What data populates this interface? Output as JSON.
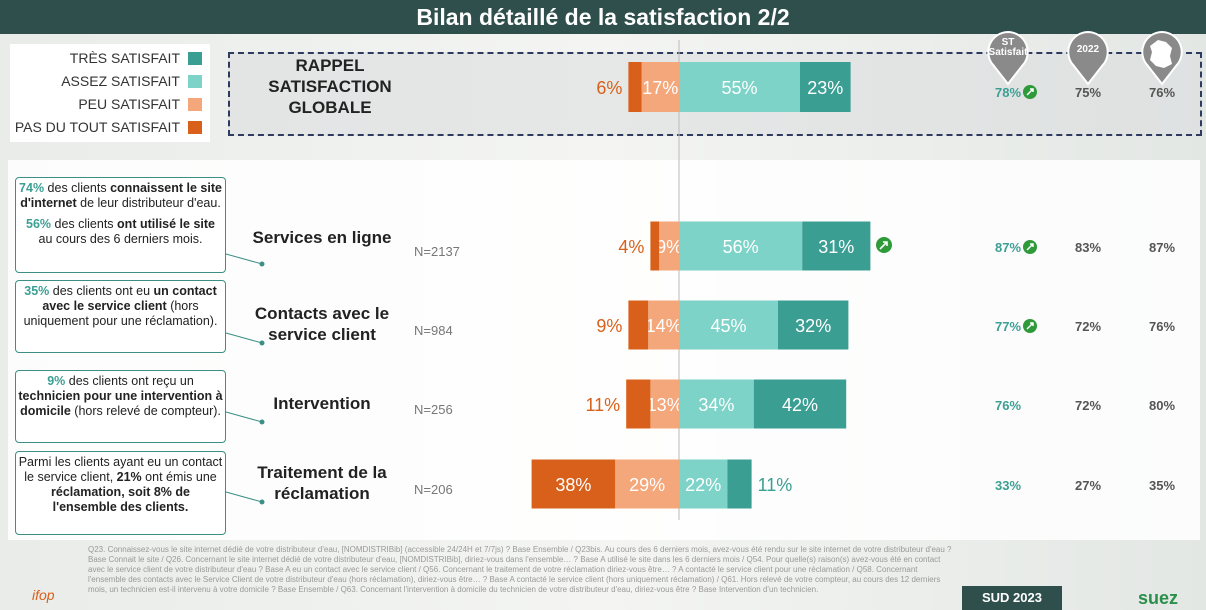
{
  "chart_data": {
    "type": "bar",
    "stacked": true,
    "diverging": true,
    "title": "Bilan détaillé de la satisfaction 2/2",
    "categories": [
      "RAPPEL SATISFACTION GLOBALE",
      "Services en ligne",
      "Contacts avec le service client",
      "Intervention",
      "Traitement de la réclamation"
    ],
    "n": [
      null,
      "N=2137",
      "N=984",
      "N=256",
      "N=206"
    ],
    "series": [
      {
        "name": "PAS DU TOUT SATISFAIT",
        "color": "#d9601a",
        "side": "negative",
        "values": [
          6,
          4,
          9,
          11,
          38
        ],
        "value_labels": [
          "6%",
          "4%",
          "9%",
          "11%",
          "38%"
        ]
      },
      {
        "name": "PEU SATISFAIT",
        "color": "#f4a77a",
        "side": "negative",
        "values": [
          17,
          9,
          14,
          13,
          29
        ],
        "value_labels": [
          "17%",
          "9%",
          "14%",
          "13%",
          "29%"
        ]
      },
      {
        "name": "ASSEZ SATISFAIT",
        "color": "#7dd3c8",
        "side": "positive",
        "values": [
          55,
          56,
          45,
          34,
          22
        ],
        "value_labels": [
          "55%",
          "56%",
          "45%",
          "34%",
          "22%"
        ]
      },
      {
        "name": "TRÈS SATISFAIT",
        "color": "#3a9e93",
        "side": "positive",
        "values": [
          23,
          31,
          32,
          42,
          11
        ],
        "value_labels": [
          "23%",
          "31%",
          "32%",
          "42%",
          "11%"
        ]
      }
    ]
  },
  "summary": {
    "headers": [
      "ST Satisfait",
      "2022"
    ],
    "rows": [
      {
        "st": "78%",
        "st_up": true,
        "y2022": "75%",
        "france": "76%"
      },
      {
        "st": "87%",
        "st_up": true,
        "y2022": "83%",
        "france": "87%"
      },
      {
        "st": "77%",
        "st_up": true,
        "y2022": "72%",
        "france": "76%"
      },
      {
        "st": "76%",
        "st_up": false,
        "y2022": "72%",
        "france": "80%"
      },
      {
        "st": "33%",
        "st_up": false,
        "y2022": "27%",
        "france": "35%"
      }
    ]
  },
  "callouts": [
    [
      {
        "t": "74%",
        "pct": true
      },
      {
        "t": " des clients "
      },
      {
        "t": "connaissent le site d'internet",
        "b": true
      },
      {
        "t": " de leur distributeur d'eau."
      },
      {
        "br": true
      },
      {
        "t": "56%",
        "pct": true
      },
      {
        "t": " des clients "
      },
      {
        "t": "ont utilisé le site",
        "b": true
      },
      {
        "t": " au cours des 6 derniers mois."
      }
    ],
    [
      {
        "t": "35%",
        "pct": true
      },
      {
        "t": " des clients ont eu "
      },
      {
        "t": "un contact avec le service client",
        "b": true
      },
      {
        "t": " (hors uniquement pour une réclamation)."
      }
    ],
    [
      {
        "t": "9%",
        "pct": true
      },
      {
        "t": " des clients ont reçu un "
      },
      {
        "t": "technicien pour une intervention à domicile",
        "b": true
      },
      {
        "t": " (hors relevé de compteur)."
      }
    ],
    [
      {
        "t": "Parmi les clients ayant eu un contact le service client, "
      },
      {
        "t": "21%",
        "b": true
      },
      {
        "t": " ont émis une "
      },
      {
        "t": "réclamation, soit 8% de l'ensemble des clients.",
        "b": true
      }
    ]
  ],
  "footer": {
    "note": "Q23. Connaissez-vous le site internet dédié de votre distributeur d'eau, [NOMDISTRIBib] (accessible 24/24H et 7/7js) ? Base Ensemble / Q23bis. Au cours des 6 derniers mois, avez-vous été rendu sur le site internet de votre distributeur d'eau ? Base Connait le site / Q26. Concernant le site internet dédié de votre distributeur d'eau, [NOMDISTRIBib], diriez-vous dans l'ensemble… ? Base A utilisé le site dans les 6 derniers mois / Q54. Pour quelle(s) raison(s) avez-vous été en contact avec le service client de votre distributeur d'eau ? Base A eu un contact avec le service client / Q56. Concernant le traitement de votre réclamation diriez-vous être… ? A contacté le service client pour une réclamation / Q58. Concernant l'ensemble des contacts avec le Service Client de votre distributeur d'eau (hors réclamation), diriez-vous être… ? Base A contacté le service client (hors uniquement réclamation) / Q61. Hors relevé de votre compteur, au cours des 12 derniers mois, un technicien est-il intervenu à votre domicile ? Base Ensemble / Q63. Concernant l'intervention à domicile du technicien de votre distributeur d'eau, diriez-vous être ? Base Intervention d'un technicien.",
    "region": "SUD 2023",
    "ifop": "ifop",
    "suez": "suez"
  }
}
